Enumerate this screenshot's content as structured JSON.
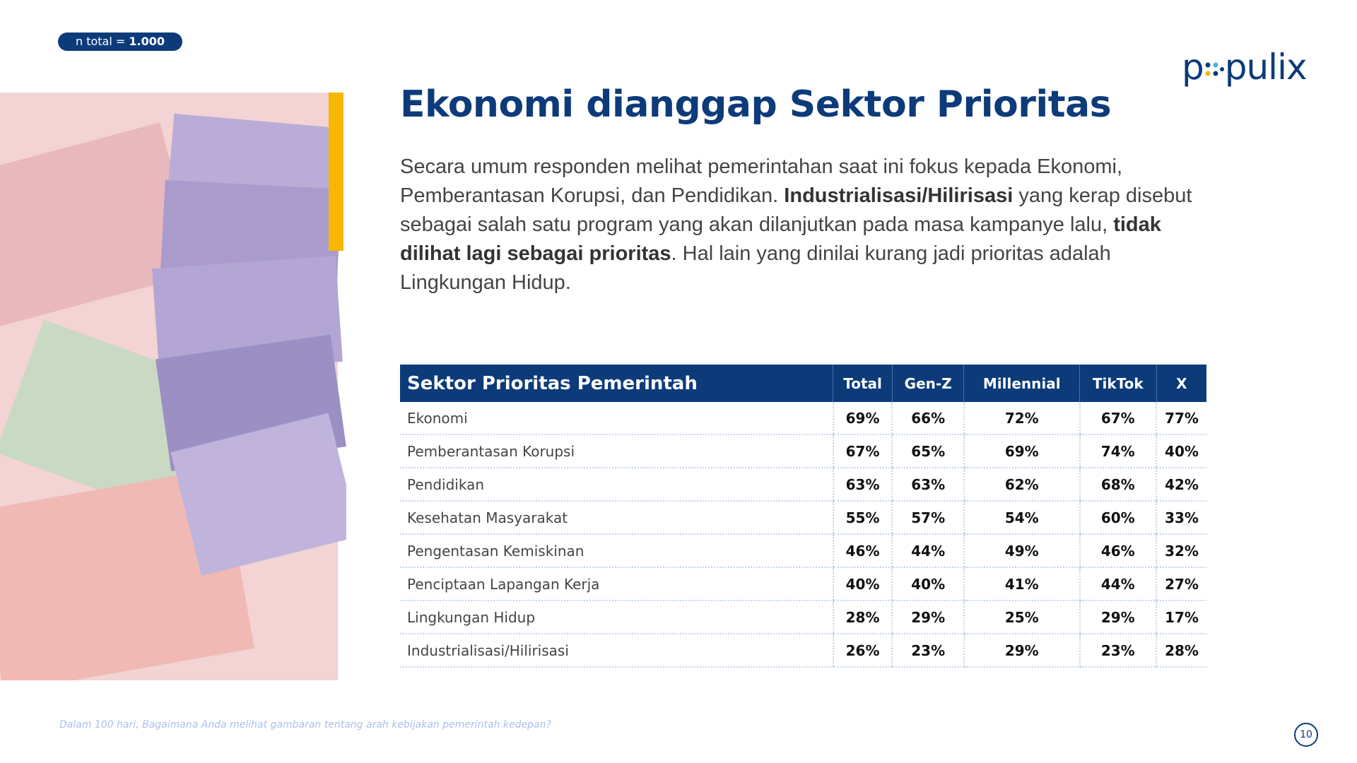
{
  "badge": {
    "label": "n total =",
    "value": "1.000"
  },
  "logo": {
    "left": "p",
    "right": "pulix"
  },
  "title": "Ekonomi dianggap Sektor Prioritas",
  "paragraph": [
    {
      "text": "Secara umum responden melihat pemerintahan saat ini fokus kepada Ekonomi, Pemberantasan Korupsi, dan Pendidikan. ",
      "bold": false
    },
    {
      "text": "Industrialisasi/Hilirisasi",
      "bold": true
    },
    {
      "text": " yang kerap disebut sebagai salah satu program yang akan dilanjutkan pada masa kampanye lalu, ",
      "bold": false
    },
    {
      "text": "tidak dilihat lagi sebagai prioritas",
      "bold": true
    },
    {
      "text": ". Hal lain yang dinilai kurang jadi prioritas adalah Lingkungan Hidup.",
      "bold": false
    }
  ],
  "table": {
    "header": [
      "Sektor Prioritas Pemerintah",
      "Total",
      "Gen-Z",
      "Millennial",
      "TikTok",
      "X"
    ],
    "rows": [
      [
        "Ekonomi",
        "69%",
        "66%",
        "72%",
        "67%",
        "77%"
      ],
      [
        "Pemberantasan Korupsi",
        "67%",
        "65%",
        "69%",
        "74%",
        "40%"
      ],
      [
        "Pendidikan",
        "63%",
        "63%",
        "62%",
        "68%",
        "42%"
      ],
      [
        "Kesehatan Masyarakat",
        "55%",
        "57%",
        "54%",
        "60%",
        "33%"
      ],
      [
        "Pengentasan Kemiskinan",
        "46%",
        "44%",
        "49%",
        "46%",
        "32%"
      ],
      [
        "Penciptaan Lapangan Kerja",
        "40%",
        "40%",
        "41%",
        "44%",
        "27%"
      ],
      [
        "Lingkungan Hidup",
        "28%",
        "29%",
        "25%",
        "29%",
        "17%"
      ],
      [
        "Industrialisasi/Hilirisasi",
        "26%",
        "23%",
        "29%",
        "23%",
        "28%"
      ]
    ]
  },
  "footer": {
    "question": "Dalam 100 hari, Bagaimana Anda melihat gambaran tentang arah kebijakan pemerintah kedepan?",
    "page": "10"
  }
}
